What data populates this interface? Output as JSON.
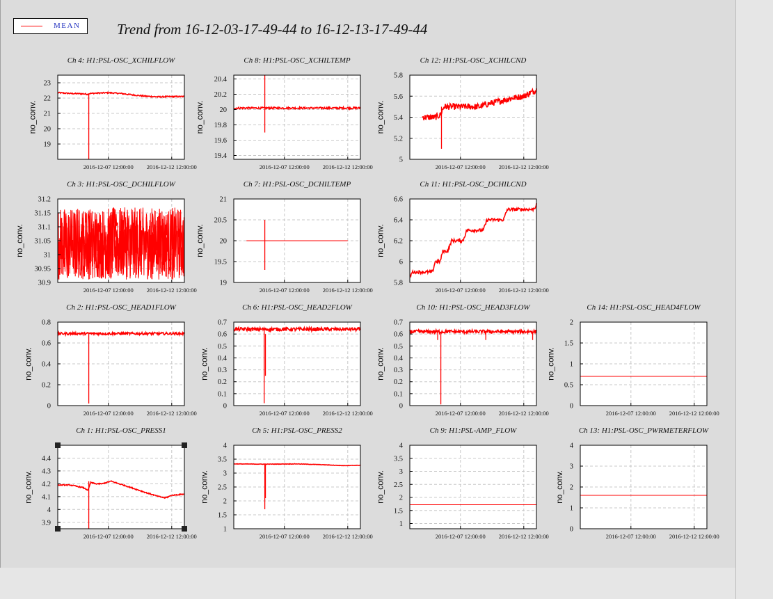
{
  "title": "Trend from 16-12-03-17-49-44 to 16-12-13-17-49-44",
  "legend": {
    "label": "MEAN",
    "color": "#ff0000"
  },
  "colors": {
    "series": "#ff0000",
    "background": "#dcdcdc",
    "plot_bg": "#ffffff"
  },
  "chart_data": [
    {
      "name": "ch4",
      "type": "line",
      "title": "Ch 4: H1:PSL-OSC_XCHILFLOW",
      "ylabel": "no_conv.",
      "yticks": [
        19,
        20,
        21,
        22,
        23
      ],
      "ylim": [
        18,
        23.5
      ],
      "xticks": [
        "2016-12-07 12:00:00",
        "2016-12-12 12:00:00"
      ],
      "grid": true,
      "mean": {
        "t": [
          0,
          0.1,
          0.2,
          0.24,
          0.25,
          0.3,
          0.4,
          0.5,
          0.6,
          0.7,
          0.8,
          0.9,
          1.0
        ],
        "y": [
          22.35,
          22.3,
          22.28,
          22.25,
          22.3,
          22.32,
          22.35,
          22.3,
          22.2,
          22.12,
          22.08,
          22.1,
          22.1
        ]
      },
      "noise": 0.04,
      "spikes": [
        {
          "t": 0.245,
          "min": 18,
          "max": 22.3
        }
      ]
    },
    {
      "name": "ch8",
      "type": "line",
      "title": "Ch 8: H1:PSL-OSC_XCHILTEMP",
      "ylabel": "no_conv.",
      "yticks": [
        19.4,
        19.6,
        19.8,
        20,
        20.2,
        20.4
      ],
      "ylim": [
        19.35,
        20.45
      ],
      "xticks": [
        "2016-12-07 12:00:00",
        "2016-12-12 12:00:00"
      ],
      "grid": true,
      "mean": {
        "t": [
          0,
          1
        ],
        "y": [
          20.02,
          20.02
        ]
      },
      "noise": 0.012,
      "spikes": [
        {
          "t": 0.245,
          "min": 19.7,
          "max": 20.45
        }
      ]
    },
    {
      "name": "ch12",
      "type": "line",
      "title": "Ch 12: H1:PSL-OSC_XCHILCND",
      "ylabel": "no_conv.",
      "yticks": [
        5,
        5.2,
        5.4,
        5.6,
        5.8
      ],
      "ylim": [
        5,
        5.8
      ],
      "xticks": [
        "2016-12-07 12:00:00",
        "2016-12-12 12:00:00"
      ],
      "grid": true,
      "mean": {
        "t": [
          0.1,
          0.2,
          0.24,
          0.27,
          0.3,
          0.5,
          0.55,
          0.6,
          0.7,
          0.8,
          0.9,
          0.95,
          1.0
        ],
        "y": [
          5.4,
          5.4,
          5.42,
          5.5,
          5.5,
          5.5,
          5.5,
          5.52,
          5.55,
          5.58,
          5.6,
          5.63,
          5.66
        ]
      },
      "noise": 0.03,
      "spikes": [
        {
          "t": 0.25,
          "min": 5.1,
          "max": 5.5
        }
      ]
    },
    {
      "name": "ch3",
      "type": "line",
      "title": "Ch 3: H1:PSL-OSC_DCHILFLOW",
      "ylabel": "no_conv.",
      "yticks": [
        30.9,
        30.95,
        31,
        31.05,
        31.1,
        31.15,
        31.2
      ],
      "ylim": [
        30.9,
        31.2
      ],
      "xticks": [
        "2016-12-07 12:00:00",
        "2016-12-12 12:00:00"
      ],
      "grid": true,
      "mean": {
        "t": [
          0,
          1
        ],
        "y": [
          31.04,
          31.04
        ]
      },
      "noise": 0.13,
      "spikes": []
    },
    {
      "name": "ch7",
      "type": "line",
      "title": "Ch 7: H1:PSL-OSC_DCHILTEMP",
      "ylabel": "no_conv.",
      "yticks": [
        19,
        19.5,
        20,
        20.5,
        21
      ],
      "ylim": [
        19,
        21
      ],
      "xticks": [
        "2016-12-07 12:00:00",
        "2016-12-12 12:00:00"
      ],
      "grid": true,
      "mean": {
        "t": [
          0.1,
          0.9
        ],
        "y": [
          20,
          20
        ]
      },
      "noise": 0,
      "spikes": [
        {
          "t": 0.245,
          "min": 19.3,
          "max": 20.5
        }
      ]
    },
    {
      "name": "ch11",
      "type": "line",
      "title": "Ch 11: H1:PSL-OSC_DCHILCND",
      "ylabel": "no_conv.",
      "yticks": [
        5.8,
        6,
        6.2,
        6.4,
        6.6
      ],
      "ylim": [
        5.8,
        6.6
      ],
      "xticks": [
        "2016-12-07 12:00:00",
        "2016-12-12 12:00:00"
      ],
      "grid": true,
      "mean": {
        "t": [
          0,
          0.02,
          0.18,
          0.2,
          0.24,
          0.26,
          0.3,
          0.33,
          0.42,
          0.45,
          0.58,
          0.61,
          0.74,
          0.77,
          0.88,
          0.91,
          0.97,
          0.99,
          1.0
        ],
        "y": [
          5.85,
          5.9,
          5.9,
          6.0,
          6.0,
          6.1,
          6.1,
          6.2,
          6.2,
          6.3,
          6.3,
          6.4,
          6.4,
          6.5,
          6.5,
          6.5,
          6.5,
          6.52,
          6.55
        ]
      },
      "noise": 0.015,
      "spikes": []
    },
    {
      "name": "ch2",
      "type": "line",
      "title": "Ch 2: H1:PSL-OSC_HEAD1FLOW",
      "ylabel": "no_conv.",
      "yticks": [
        0,
        0.2,
        0.4,
        0.6,
        0.8
      ],
      "ylim": [
        0,
        0.8
      ],
      "xticks": [
        "2016-12-07 12:00:00",
        "2016-12-12 12:00:00"
      ],
      "grid": true,
      "mean": {
        "t": [
          0,
          1
        ],
        "y": [
          0.69,
          0.69
        ]
      },
      "noise": 0.012,
      "spikes": [
        {
          "t": 0.245,
          "min": 0.02,
          "max": 0.7
        }
      ]
    },
    {
      "name": "ch6",
      "type": "line",
      "title": "Ch 6: H1:PSL-OSC_HEAD2FLOW",
      "ylabel": "no_conv.",
      "yticks": [
        0,
        0.1,
        0.2,
        0.3,
        0.4,
        0.5,
        0.6,
        0.7
      ],
      "ylim": [
        0,
        0.7
      ],
      "xticks": [
        "2016-12-07 12:00:00",
        "2016-12-12 12:00:00"
      ],
      "grid": true,
      "mean": {
        "t": [
          0,
          1
        ],
        "y": [
          0.64,
          0.64
        ]
      },
      "noise": 0.015,
      "spikes": [
        {
          "t": 0.24,
          "min": 0.02,
          "max": 0.65
        },
        {
          "t": 0.25,
          "min": 0.25,
          "max": 0.6
        }
      ]
    },
    {
      "name": "ch10",
      "type": "line",
      "title": "Ch 10: H1:PSL-OSC_HEAD3FLOW",
      "ylabel": "no_conv.",
      "yticks": [
        0,
        0.1,
        0.2,
        0.3,
        0.4,
        0.5,
        0.6,
        0.7
      ],
      "ylim": [
        0,
        0.7
      ],
      "xticks": [
        "2016-12-07 12:00:00",
        "2016-12-12 12:00:00"
      ],
      "grid": true,
      "mean": {
        "t": [
          0,
          1
        ],
        "y": [
          0.62,
          0.62
        ]
      },
      "noise": 0.015,
      "spikes": [
        {
          "t": 0.245,
          "min": 0.01,
          "max": 0.62
        },
        {
          "t": 0.22,
          "min": 0.55,
          "max": 0.62
        },
        {
          "t": 0.6,
          "min": 0.55,
          "max": 0.62
        },
        {
          "t": 0.97,
          "min": 0.55,
          "max": 0.62
        }
      ]
    },
    {
      "name": "ch14",
      "type": "line",
      "title": "Ch 14: H1:PSL-OSC_HEAD4FLOW",
      "ylabel": "no_conv.",
      "yticks": [
        0,
        0.5,
        1,
        1.5,
        2
      ],
      "ylim": [
        0,
        2
      ],
      "xticks": [
        "2016-12-07 12:00:00",
        "2016-12-12 12:00:00"
      ],
      "grid": true,
      "mean": {
        "t": [
          0,
          1
        ],
        "y": [
          0.7,
          0.7
        ]
      },
      "noise": 0,
      "spikes": []
    },
    {
      "name": "ch1",
      "type": "line",
      "title": "Ch 1: H1:PSL-OSC_PRESS1",
      "ylabel": "no_conv.",
      "yticks": [
        3.9,
        4,
        4.1,
        4.2,
        4.3,
        4.4
      ],
      "ylim": [
        3.85,
        4.5
      ],
      "xticks": [
        "2016-12-07 12:00:00",
        "2016-12-12 12:00:00"
      ],
      "grid": true,
      "mean": {
        "t": [
          0,
          0.1,
          0.2,
          0.24,
          0.26,
          0.3,
          0.35,
          0.42,
          0.55,
          0.7,
          0.8,
          0.85,
          0.9,
          1.0
        ],
        "y": [
          4.19,
          4.19,
          4.17,
          4.15,
          4.21,
          4.2,
          4.2,
          4.22,
          4.18,
          4.13,
          4.1,
          4.09,
          4.11,
          4.12
        ]
      },
      "noise": 0.004,
      "spikes": [
        {
          "t": 0.245,
          "min": 3.85,
          "max": 4.22
        }
      ],
      "selected": true
    },
    {
      "name": "ch5",
      "type": "line",
      "title": "Ch 5: H1:PSL-OSC_PRESS2",
      "ylabel": "no_conv.",
      "yticks": [
        1,
        1.5,
        2,
        2.5,
        3,
        3.5,
        4
      ],
      "ylim": [
        1,
        4
      ],
      "xticks": [
        "2016-12-07 12:00:00",
        "2016-12-12 12:00:00"
      ],
      "grid": true,
      "mean": {
        "t": [
          0,
          0.25,
          0.5,
          0.7,
          0.85,
          1.0
        ],
        "y": [
          3.33,
          3.32,
          3.33,
          3.3,
          3.27,
          3.28
        ]
      },
      "noise": 0.008,
      "spikes": [
        {
          "t": 0.245,
          "min": 1.7,
          "max": 3.33
        },
        {
          "t": 0.25,
          "min": 2.1,
          "max": 3.3
        }
      ]
    },
    {
      "name": "ch9",
      "type": "line",
      "title": "Ch 9: H1:PSL-AMP_FLOW",
      "ylabel": "no_conv.",
      "yticks": [
        1,
        1.5,
        2,
        2.5,
        3,
        3.5,
        4
      ],
      "ylim": [
        0.8,
        4
      ],
      "xticks": [
        "2016-12-07 12:00:00",
        "2016-12-12 12:00:00"
      ],
      "grid": true,
      "mean": {
        "t": [
          0,
          1
        ],
        "y": [
          1.72,
          1.72
        ]
      },
      "noise": 0,
      "spikes": []
    },
    {
      "name": "ch13",
      "type": "line",
      "title": "Ch 13: H1:PSL-OSC_PWRMETERFLOW",
      "ylabel": "no_conv.",
      "yticks": [
        0,
        1,
        2,
        3,
        4
      ],
      "ylim": [
        0,
        4
      ],
      "xticks": [
        "2016-12-07 12:00:00",
        "2016-12-12 12:00:00"
      ],
      "grid": true,
      "mean": {
        "t": [
          0,
          1
        ],
        "y": [
          1.6,
          1.6
        ]
      },
      "noise": 0,
      "spikes": []
    }
  ]
}
